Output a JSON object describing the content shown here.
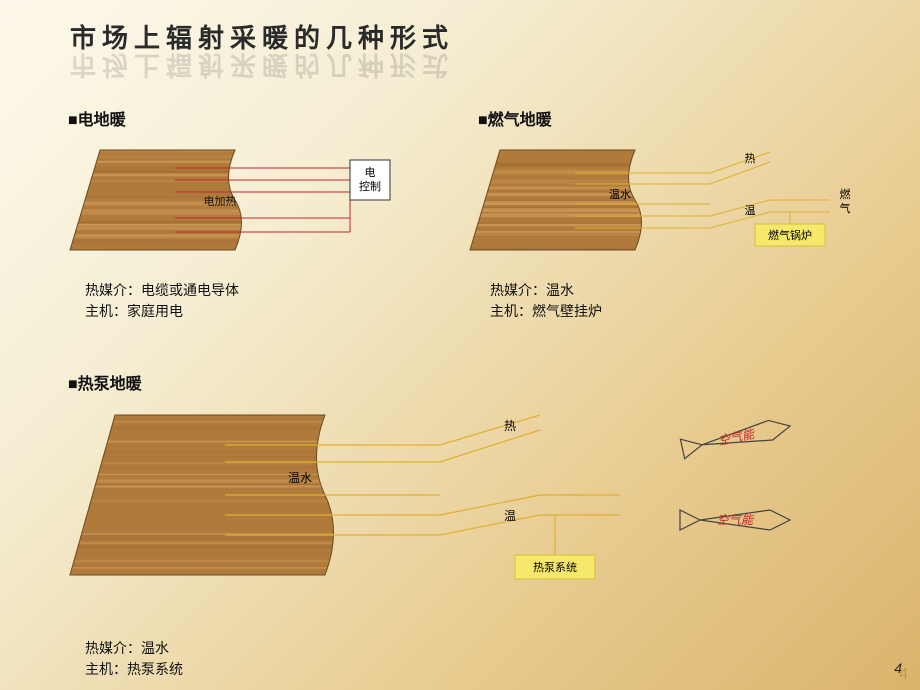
{
  "title": "市场上辐射采暖的几种形式",
  "page_number": "4",
  "page_number_alt": "4",
  "wood_colors": [
    "#b07a3a",
    "#c58f4d",
    "#a36c2f",
    "#d19e5c",
    "#b57f3e",
    "#c08a47",
    "#a8723a",
    "#c99555"
  ],
  "sections": {
    "electric": {
      "label": "■电地暖",
      "heater_label": "电加热",
      "control_box": "电\n控制",
      "desc_line1": "热媒介：电缆或通电导体",
      "desc_line2": "主机：家庭用电",
      "line_color": "#c1272d",
      "box_border": "#333333"
    },
    "gas": {
      "label": "■燃气地暖",
      "water_label": "温水",
      "hot_label": "热",
      "warm_label": "温",
      "gas_label": "燃\n气",
      "boiler_label": "燃气锅炉",
      "desc_line1": "热媒介：温水",
      "desc_line2": "主机：燃气壁挂炉",
      "line_color": "#e0b030",
      "boiler_bg": "#f6e86a",
      "boiler_border": "#d3c142"
    },
    "heatpump": {
      "label": "■热泵地暖",
      "water_label": "温水",
      "hot_label": "热",
      "warm_label": "温",
      "pump_label": "热泵系统",
      "air_label": "空气能",
      "desc_line1": "热媒介：温水",
      "desc_line2": "主机：热泵系统",
      "line_color": "#e0b030",
      "pump_bg": "#f6e86a",
      "pump_border": "#d3c142",
      "arrow_stroke": "#444444",
      "arrow_text_color": "#c1272d"
    }
  }
}
